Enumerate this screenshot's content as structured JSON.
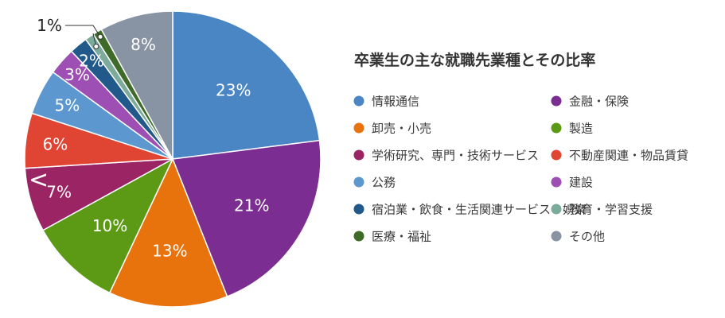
{
  "chart_data": {
    "type": "pie",
    "title": "卒業生の主な就職先業種とその比率",
    "start_angle_deg": 0,
    "direction": "clockwise",
    "slices": [
      {
        "label": "情報通信",
        "value": 23,
        "display": "23%",
        "color": "#4a86c4"
      },
      {
        "label": "金融・保険",
        "value": 21,
        "display": "21%",
        "color": "#7b2d91"
      },
      {
        "label": "卸売・小売",
        "value": 13,
        "display": "13%",
        "color": "#e8720c"
      },
      {
        "label": "製造",
        "value": 10,
        "display": "10%",
        "color": "#5c9a16"
      },
      {
        "label": "学術研究、専門・技術サービス",
        "value": 7,
        "display": "7%",
        "color": "#9b2465"
      },
      {
        "label": "不動産関連・物品賃貸",
        "value": 6,
        "display": "6%",
        "color": "#e04433"
      },
      {
        "label": "公務",
        "value": 5,
        "display": "5%",
        "color": "#5c98cf"
      },
      {
        "label": "建設",
        "value": 3,
        "display": "3%",
        "color": "#9d4fb3"
      },
      {
        "label": "宿泊業・飲食・生活関連サービス・娯楽",
        "value": 2,
        "display": "2%",
        "color": "#215a8a"
      },
      {
        "label": "教育・学習支援",
        "value": 1,
        "display": "",
        "color": "#7cab9c"
      },
      {
        "label": "医療・福祉",
        "value": 1,
        "display": "1%",
        "color": "#3f6b28"
      },
      {
        "label": "その他",
        "value": 8,
        "display": "8%",
        "color": "#8893a3"
      }
    ],
    "legend_placement": "right",
    "legend_columns": 2
  },
  "callout_marker": "<"
}
